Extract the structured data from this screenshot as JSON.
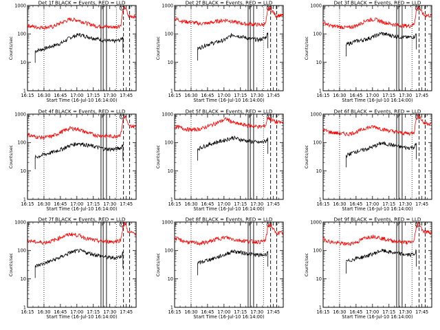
{
  "chart_data": {
    "type": "line",
    "layout": "3x3 grid",
    "shared": {
      "xlabel": "Start Time (16-Jul-10 16:14:00)",
      "ylabel": "Counts/sec",
      "x_tick_labels": [
        "16:15",
        "16:30",
        "16:45",
        "17:00",
        "17:15",
        "17:30",
        "17:45"
      ],
      "x_ticks_min": [
        1,
        16,
        31,
        46,
        61,
        76,
        91
      ],
      "xlim_min": [
        1,
        100
      ],
      "y_tick_labels": [
        "1",
        "10",
        "100",
        "1000"
      ],
      "y_ticks": [
        1,
        10,
        100,
        1000
      ],
      "ylim": [
        1,
        1000
      ],
      "yscale": "log",
      "vlines_dotted_min": [
        16,
        82
      ],
      "vlines_solid_min": [
        68,
        70,
        73
      ],
      "vlines_dashed_min": [
        88.5,
        94
      ],
      "annotations": [
        {
          "text": "F",
          "x_min": 1.5
        },
        {
          "text": "F",
          "x_min": 68.5
        },
        {
          "text": "C",
          "x_min": 86
        },
        {
          "text": "F",
          "x_min": 93
        }
      ],
      "series_colors": {
        "Events": "#000000",
        "LLD": "#ff0000"
      }
    },
    "panels": [
      {
        "title": "Det 1f BLACK = Events, RED = LLD",
        "series": [
          {
            "name": "Events",
            "color": "#000000",
            "x": [
              8,
              16,
              24,
              32,
              40,
              48,
              56,
              64,
              72,
              80,
              86,
              88
            ],
            "values": [
              25,
              30,
              38,
              48,
              75,
              95,
              80,
              68,
              58,
              55,
              62,
              80
            ],
            "starts_min": 8,
            "ends_min": 88
          },
          {
            "name": "LLD",
            "color": "#ff0000",
            "x": [
              1,
              8,
              16,
              24,
              32,
              40,
              48,
              56,
              64,
              72,
              80,
              86,
              88,
              90,
              93,
              97,
              100
            ],
            "values": [
              200,
              175,
              170,
              180,
              250,
              330,
              300,
              230,
              190,
              180,
              175,
              200,
              650,
              900,
              420,
              420,
              410
            ]
          }
        ]
      },
      {
        "title": "Det 2f BLACK = Events, RED = LLD",
        "series": [
          {
            "name": "Events",
            "color": "#000000",
            "x": [
              22,
              30,
              38,
              46,
              54,
              62,
              70,
              78,
              84,
              86
            ],
            "values": [
              30,
              42,
              50,
              60,
              95,
              80,
              68,
              62,
              75,
              110
            ],
            "starts_min": 22,
            "ends_min": 86
          },
          {
            "name": "LLD",
            "color": "#ff0000",
            "x": [
              1,
              8,
              16,
              24,
              32,
              40,
              48,
              56,
              64,
              72,
              80,
              84,
              86,
              88,
              93,
              97,
              100
            ],
            "values": [
              350,
              280,
              260,
              230,
              240,
              280,
              310,
              260,
              230,
              220,
              210,
              230,
              700,
              850,
              450,
              450,
              430
            ]
          }
        ]
      },
      {
        "title": "Det 3f BLACK = Events, RED = LLD",
        "series": [
          {
            "name": "Events",
            "color": "#000000",
            "x": [
              22,
              30,
              38,
              46,
              54,
              62,
              70,
              78,
              84,
              86
            ],
            "values": [
              42,
              55,
              62,
              78,
              105,
              90,
              80,
              75,
              80,
              100
            ],
            "starts_min": 22,
            "ends_min": 86
          },
          {
            "name": "LLD",
            "color": "#ff0000",
            "x": [
              1,
              8,
              16,
              24,
              32,
              40,
              48,
              56,
              64,
              72,
              80,
              84,
              86,
              88,
              93,
              97,
              100
            ],
            "values": [
              260,
              190,
              180,
              165,
              200,
              300,
              330,
              260,
              220,
              200,
              190,
              220,
              700,
              880,
              450,
              450,
              420
            ]
          }
        ]
      },
      {
        "title": "Det 4f BLACK = Events, RED = LLD",
        "series": [
          {
            "name": "Events",
            "color": "#000000",
            "x": [
              8,
              16,
              24,
              32,
              40,
              48,
              56,
              64,
              72,
              80,
              86,
              88
            ],
            "values": [
              30,
              38,
              46,
              58,
              80,
              95,
              80,
              70,
              60,
              58,
              65,
              85
            ],
            "starts_min": 8,
            "ends_min": 88
          },
          {
            "name": "LLD",
            "color": "#ff0000",
            "x": [
              1,
              8,
              16,
              24,
              32,
              40,
              48,
              56,
              64,
              72,
              80,
              86,
              88,
              90,
              93,
              97,
              100
            ],
            "values": [
              190,
              160,
              150,
              170,
              240,
              320,
              290,
              220,
              180,
              170,
              165,
              190,
              600,
              880,
              380,
              380,
              360
            ]
          }
        ]
      },
      {
        "title": "Det 5f BLACK = Events, RED = LLD",
        "series": [
          {
            "name": "Events",
            "color": "#000000",
            "x": [
              22,
              30,
              38,
              46,
              54,
              62,
              70,
              78,
              84,
              86
            ],
            "values": [
              60,
              80,
              100,
              120,
              150,
              125,
              110,
              100,
              110,
              140
            ],
            "starts_min": 22,
            "ends_min": 86
          },
          {
            "name": "LLD",
            "color": "#ff0000",
            "x": [
              1,
              8,
              16,
              24,
              32,
              40,
              48,
              56,
              64,
              72,
              80,
              84,
              86,
              88,
              93,
              97,
              100
            ],
            "values": [
              380,
              320,
              280,
              300,
              380,
              500,
              680,
              480,
              420,
              380,
              360,
              400,
              800,
              700,
              520,
              520,
              480
            ]
          }
        ]
      },
      {
        "title": "Det 6f BLACK = Events, RED = LLD",
        "series": [
          {
            "name": "Events",
            "color": "#000000",
            "x": [
              22,
              30,
              38,
              46,
              54,
              62,
              70,
              78,
              84,
              86
            ],
            "values": [
              35,
              48,
              55,
              70,
              95,
              85,
              72,
              65,
              70,
              90
            ],
            "starts_min": 22,
            "ends_min": 86
          },
          {
            "name": "LLD",
            "color": "#ff0000",
            "x": [
              1,
              8,
              16,
              24,
              32,
              40,
              48,
              56,
              64,
              72,
              80,
              84,
              86,
              88,
              93,
              97,
              100
            ],
            "values": [
              280,
              230,
              210,
              200,
              240,
              330,
              360,
              290,
              250,
              220,
              210,
              240,
              750,
              900,
              480,
              480,
              450
            ]
          }
        ]
      },
      {
        "title": "Det 7f BLACK = Events, RED = LLD",
        "series": [
          {
            "name": "Events",
            "color": "#000000",
            "x": [
              8,
              16,
              24,
              32,
              40,
              48,
              56,
              64,
              72,
              80,
              86,
              88
            ],
            "values": [
              28,
              35,
              45,
              60,
              85,
              100,
              82,
              70,
              58,
              55,
              62,
              85
            ],
            "starts_min": 8,
            "ends_min": 88
          },
          {
            "name": "LLD",
            "color": "#ff0000",
            "x": [
              1,
              8,
              16,
              24,
              32,
              40,
              48,
              56,
              64,
              72,
              80,
              86,
              88,
              90,
              93,
              97,
              100
            ],
            "values": [
              230,
              200,
              190,
              220,
              300,
              380,
              340,
              260,
              220,
              210,
              205,
              230,
              700,
              950,
              420,
              420,
              400
            ]
          }
        ]
      },
      {
        "title": "Det 8f BLACK = Events, RED = LLD",
        "series": [
          {
            "name": "Events",
            "color": "#000000",
            "x": [
              22,
              30,
              38,
              46,
              54,
              62,
              70,
              78,
              84,
              86
            ],
            "values": [
              35,
              45,
              55,
              70,
              95,
              85,
              75,
              68,
              72,
              95
            ],
            "starts_min": 22,
            "ends_min": 86
          },
          {
            "name": "LLD",
            "color": "#ff0000",
            "x": [
              1,
              8,
              16,
              24,
              32,
              40,
              48,
              56,
              64,
              72,
              80,
              84,
              86,
              88,
              93,
              97,
              100
            ],
            "values": [
              280,
              220,
              190,
              180,
              200,
              260,
              290,
              240,
              220,
              210,
              200,
              230,
              700,
              850,
              420,
              420,
              400
            ]
          }
        ]
      },
      {
        "title": "Det 9f BLACK = Events, RED = LLD",
        "series": [
          {
            "name": "Events",
            "color": "#000000",
            "x": [
              22,
              30,
              38,
              46,
              54,
              62,
              70,
              78,
              84,
              86
            ],
            "values": [
              40,
              52,
              60,
              75,
              100,
              88,
              78,
              70,
              75,
              95
            ],
            "starts_min": 22,
            "ends_min": 86
          },
          {
            "name": "LLD",
            "color": "#ff0000",
            "x": [
              1,
              8,
              16,
              24,
              32,
              40,
              48,
              56,
              64,
              72,
              80,
              84,
              86,
              88,
              93,
              97,
              100
            ],
            "values": [
              260,
              200,
              180,
              170,
              200,
              290,
              320,
              260,
              220,
              200,
              190,
              220,
              700,
              900,
              450,
              450,
              420
            ]
          }
        ]
      }
    ]
  }
}
